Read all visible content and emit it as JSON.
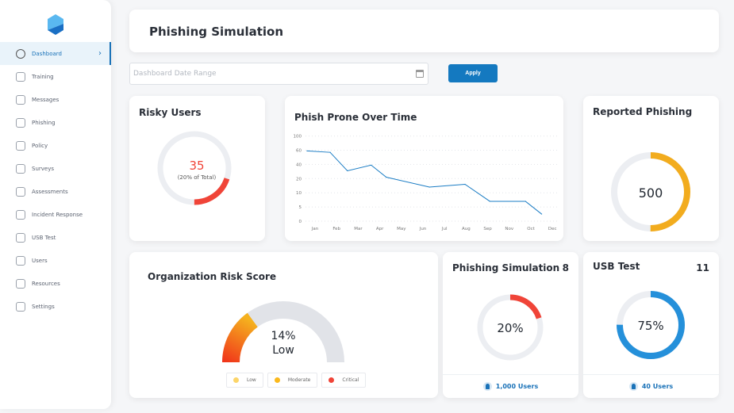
{
  "sidebar": {
    "items": [
      {
        "label": "Dashboard",
        "icon": "gauge-icon",
        "active": true
      },
      {
        "label": "Training",
        "icon": "training-icon"
      },
      {
        "label": "Messages",
        "icon": "paper-plane-icon"
      },
      {
        "label": "Phishing",
        "icon": "phishing-icon"
      },
      {
        "label": "Policy",
        "icon": "policy-icon"
      },
      {
        "label": "Surveys",
        "icon": "clipboard-icon"
      },
      {
        "label": "Assessments",
        "icon": "assessment-icon"
      },
      {
        "label": "Incident Response",
        "icon": "incident-icon"
      },
      {
        "label": "USB Test",
        "icon": "usb-icon"
      },
      {
        "label": "Users",
        "icon": "user-icon"
      },
      {
        "label": "Resources",
        "icon": "resources-icon"
      },
      {
        "label": "Settings",
        "icon": "gear-icon"
      }
    ]
  },
  "header": {
    "title": "Phishing Simulation"
  },
  "filter": {
    "placeholder": "Dashboard Date Range",
    "apply_label": "Apply"
  },
  "risky_users": {
    "title": "Risky Users",
    "value": "35",
    "subtitle": "(20% of Total)",
    "percent": 20,
    "color": "#f04438"
  },
  "reported_phishing": {
    "title": "Reported Phishing",
    "value": "500",
    "percent": 50,
    "color": "#f2ac1e"
  },
  "org_risk": {
    "title": "Organization Risk Score",
    "value": "14%",
    "level": "Low",
    "legend": [
      {
        "label": "Low",
        "color": "#fcd569"
      },
      {
        "label": "Moderate",
        "color": "#fbb91c"
      },
      {
        "label": "Critical",
        "color": "#f04438"
      }
    ]
  },
  "phishing_sim": {
    "title": "Phishing Simulation",
    "count": "8",
    "value": "20%",
    "percent": 20,
    "users": "1,000 Users",
    "color": "#f04438"
  },
  "usb_test": {
    "title": "USB Test",
    "count": "11",
    "value": "75%",
    "percent": 75,
    "users": "40 Users",
    "color": "#2590da"
  },
  "chart_data": {
    "type": "line",
    "title": "Phish Prone Over Time",
    "categories": [
      "Jan",
      "Feb",
      "Mar",
      "Apr",
      "May",
      "Jun",
      "Jul",
      "Aug",
      "Sep",
      "Nov",
      "Oct",
      "Dec"
    ],
    "yticks": [
      0,
      5,
      10,
      20,
      40,
      60,
      100
    ],
    "grid": true,
    "color": "#1a7cc4",
    "points": [
      {
        "x": -0.37,
        "y": 59
      },
      {
        "x": 0.7,
        "y": 57
      },
      {
        "x": 1.5,
        "y": 31
      },
      {
        "x": 2.6,
        "y": 39
      },
      {
        "x": 3.3,
        "y": 22
      },
      {
        "x": 5.3,
        "y": 14
      },
      {
        "x": 6.95,
        "y": 16
      },
      {
        "x": 8.1,
        "y": 7
      },
      {
        "x": 9.75,
        "y": 7
      },
      {
        "x": 10.5,
        "y": 2.5
      }
    ]
  }
}
